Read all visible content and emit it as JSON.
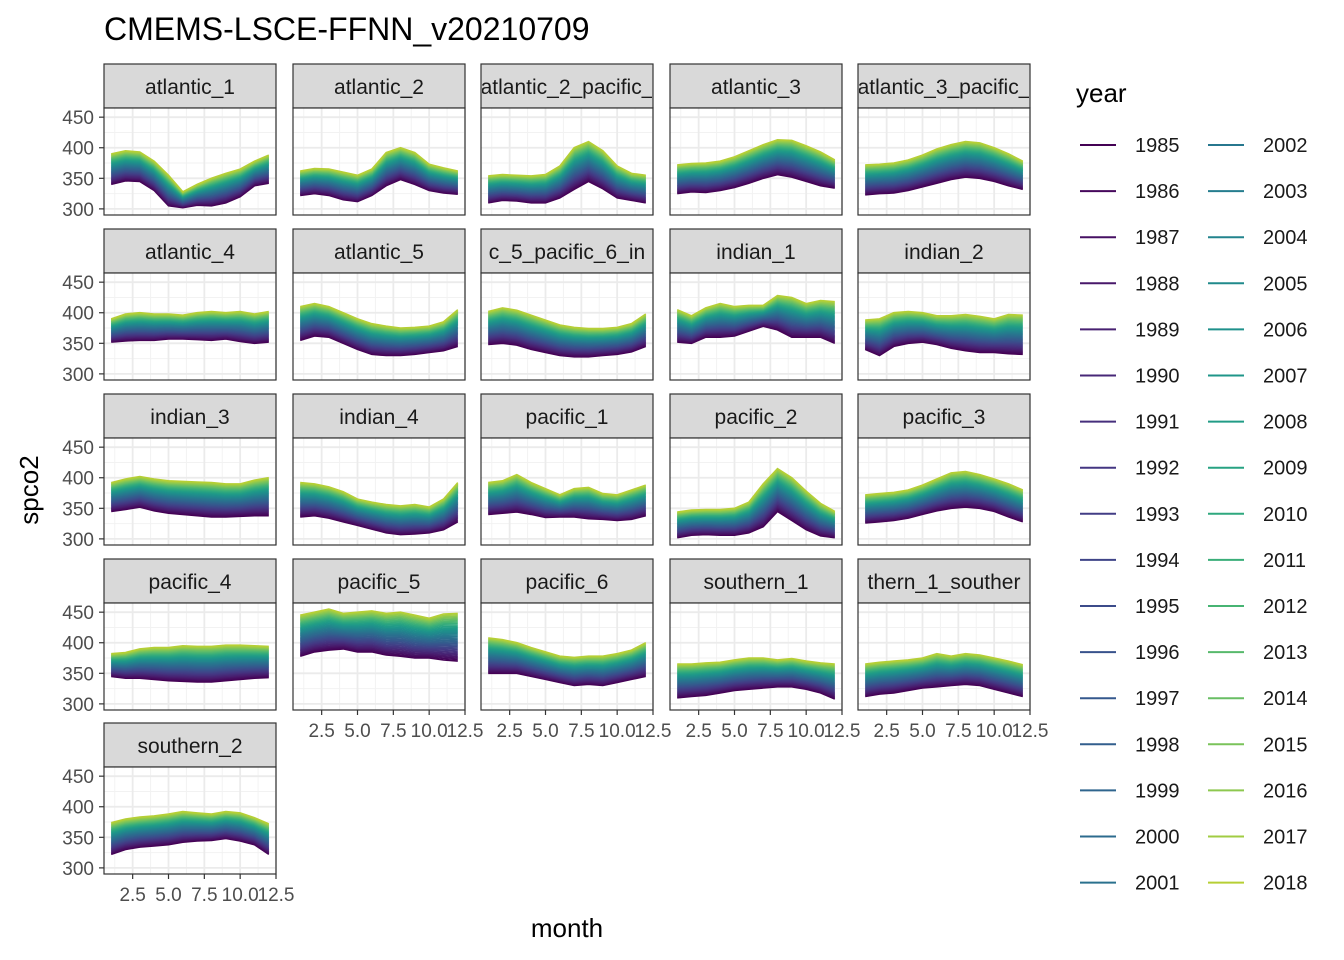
{
  "chart_data": {
    "type": "line",
    "title": "CMEMS-LSCE-FFNN_v20210709",
    "xlabel": "month",
    "ylabel": "spco2",
    "x": [
      1,
      2,
      3,
      4,
      5,
      6,
      7,
      8,
      9,
      10,
      11,
      12
    ],
    "xlim": [
      0.5,
      12.5
    ],
    "ylim": [
      290,
      465
    ],
    "x_ticks": [
      2.5,
      5.0,
      7.5,
      10.0,
      12.5
    ],
    "x_tick_labels": [
      "2.5",
      "5.0",
      "7.5",
      "10.0",
      "12.5"
    ],
    "y_ticks": [
      300,
      350,
      400,
      450
    ],
    "y_tick_labels": [
      "300",
      "350",
      "400",
      "450"
    ],
    "grid": true,
    "legend_title": "year",
    "legend_position": "right",
    "years": [
      "1985",
      "1986",
      "1987",
      "1988",
      "1989",
      "1990",
      "1991",
      "1992",
      "1993",
      "1994",
      "1995",
      "1996",
      "1997",
      "1998",
      "1999",
      "2000",
      "2001",
      "2002",
      "2003",
      "2004",
      "2005",
      "2006",
      "2007",
      "2008",
      "2009",
      "2010",
      "2011",
      "2012",
      "2013",
      "2014",
      "2015",
      "2016",
      "2017",
      "2018"
    ],
    "year_colors": [
      "#440154",
      "#46085c",
      "#471063",
      "#48186a",
      "#482071",
      "#472777",
      "#462f7c",
      "#443682",
      "#423d85",
      "#3f4488",
      "#3c4b8a",
      "#38528c",
      "#35588d",
      "#325f8d",
      "#2f658e",
      "#2c6b8e",
      "#2a718e",
      "#27778e",
      "#257d8e",
      "#22848d",
      "#208a8c",
      "#1f908b",
      "#1f9689",
      "#219c86",
      "#27a282",
      "#2fa87e",
      "#3aae79",
      "#47b473",
      "#57b96c",
      "#68be64",
      "#7ac35a",
      "#8dc84f",
      "#a1cc43",
      "#b6cf35"
    ],
    "panels": [
      {
        "label": "atlantic_1",
        "first": [
          340,
          346,
          345,
          330,
          305,
          302,
          306,
          305,
          310,
          320,
          338,
          342
        ],
        "last": [
          390,
          395,
          393,
          378,
          355,
          328,
          340,
          350,
          358,
          365,
          378,
          388
        ]
      },
      {
        "label": "atlantic_2",
        "first": [
          322,
          325,
          322,
          315,
          312,
          322,
          338,
          348,
          340,
          330,
          326,
          324
        ],
        "last": [
          362,
          366,
          365,
          360,
          355,
          365,
          392,
          400,
          392,
          373,
          367,
          362
        ]
      },
      {
        "label": "atlantic_2_pacific_",
        "first": [
          310,
          314,
          313,
          310,
          310,
          318,
          332,
          345,
          333,
          318,
          314,
          310
        ],
        "last": [
          354,
          356,
          355,
          354,
          356,
          370,
          400,
          410,
          395,
          370,
          358,
          355
        ]
      },
      {
        "label": "atlantic_3",
        "first": [
          325,
          328,
          327,
          330,
          335,
          342,
          350,
          356,
          352,
          345,
          338,
          334
        ],
        "last": [
          372,
          374,
          375,
          378,
          385,
          395,
          405,
          413,
          412,
          403,
          393,
          380
        ]
      },
      {
        "label": "atlantic_3_pacific_",
        "first": [
          323,
          325,
          326,
          330,
          336,
          342,
          348,
          352,
          350,
          345,
          338,
          332
        ],
        "last": [
          372,
          373,
          375,
          380,
          388,
          398,
          405,
          410,
          408,
          400,
          390,
          378
        ]
      },
      {
        "label": "atlantic_4",
        "first": [
          352,
          354,
          355,
          355,
          357,
          357,
          356,
          355,
          357,
          353,
          350,
          352
        ],
        "last": [
          390,
          398,
          400,
          398,
          398,
          396,
          400,
          402,
          400,
          402,
          398,
          402
        ]
      },
      {
        "label": "atlantic_5",
        "first": [
          355,
          362,
          360,
          350,
          340,
          332,
          330,
          330,
          332,
          335,
          338,
          345
        ],
        "last": [
          410,
          415,
          410,
          400,
          390,
          382,
          378,
          375,
          376,
          378,
          385,
          405
        ]
      },
      {
        "label": "c_5_pacific_6_in",
        "first": [
          348,
          350,
          347,
          340,
          335,
          330,
          328,
          328,
          330,
          332,
          336,
          345
        ],
        "last": [
          402,
          408,
          404,
          396,
          388,
          380,
          376,
          374,
          374,
          376,
          382,
          398
        ]
      },
      {
        "label": "indian_1",
        "first": [
          352,
          350,
          360,
          360,
          362,
          370,
          378,
          372,
          360,
          360,
          360,
          350
        ],
        "last": [
          405,
          395,
          408,
          415,
          410,
          412,
          412,
          428,
          425,
          415,
          420,
          418
        ]
      },
      {
        "label": "indian_2",
        "first": [
          340,
          330,
          345,
          350,
          352,
          348,
          342,
          338,
          335,
          335,
          333,
          332
        ],
        "last": [
          388,
          390,
          400,
          402,
          400,
          395,
          395,
          397,
          394,
          390,
          397,
          396
        ]
      },
      {
        "label": "indian_3",
        "first": [
          345,
          348,
          352,
          346,
          342,
          340,
          338,
          336,
          336,
          337,
          338,
          338
        ],
        "last": [
          392,
          398,
          402,
          398,
          395,
          394,
          393,
          392,
          390,
          390,
          396,
          400
        ]
      },
      {
        "label": "indian_4",
        "first": [
          336,
          338,
          334,
          328,
          322,
          316,
          310,
          307,
          308,
          310,
          315,
          328
        ],
        "last": [
          392,
          390,
          385,
          377,
          365,
          360,
          356,
          354,
          356,
          352,
          365,
          392
        ]
      },
      {
        "label": "pacific_1",
        "first": [
          340,
          342,
          344,
          340,
          335,
          336,
          336,
          333,
          332,
          330,
          332,
          338
        ],
        "last": [
          392,
          395,
          405,
          392,
          382,
          372,
          382,
          384,
          374,
          372,
          380,
          388
        ]
      },
      {
        "label": "pacific_2",
        "first": [
          302,
          306,
          307,
          306,
          306,
          310,
          320,
          345,
          330,
          315,
          305,
          302
        ],
        "last": [
          344,
          347,
          348,
          348,
          350,
          360,
          390,
          415,
          400,
          378,
          358,
          345
        ]
      },
      {
        "label": "pacific_3",
        "first": [
          326,
          328,
          330,
          334,
          340,
          346,
          350,
          352,
          350,
          345,
          336,
          328
        ],
        "last": [
          372,
          374,
          376,
          380,
          388,
          398,
          408,
          410,
          405,
          398,
          390,
          380
        ]
      },
      {
        "label": "pacific_4",
        "first": [
          345,
          342,
          342,
          340,
          338,
          337,
          336,
          336,
          338,
          340,
          342,
          343
        ],
        "last": [
          382,
          384,
          390,
          392,
          392,
          395,
          394,
          394,
          396,
          396,
          395,
          394
        ]
      },
      {
        "label": "pacific_5",
        "first": [
          378,
          385,
          388,
          390,
          385,
          385,
          380,
          378,
          375,
          375,
          372,
          370
        ],
        "last": [
          445,
          450,
          455,
          448,
          450,
          452,
          448,
          450,
          445,
          440,
          447,
          448
        ]
      },
      {
        "label": "pacific_6",
        "first": [
          350,
          350,
          350,
          345,
          340,
          335,
          330,
          332,
          330,
          335,
          340,
          345
        ],
        "last": [
          408,
          405,
          400,
          392,
          385,
          378,
          376,
          378,
          378,
          382,
          388,
          400
        ]
      },
      {
        "label": "southern_1",
        "first": [
          310,
          312,
          314,
          318,
          322,
          324,
          326,
          328,
          328,
          324,
          318,
          308
        ],
        "last": [
          365,
          365,
          367,
          368,
          372,
          375,
          375,
          372,
          374,
          370,
          367,
          365
        ]
      },
      {
        "label": "thern_1_souther",
        "first": [
          312,
          316,
          318,
          322,
          326,
          328,
          330,
          332,
          330,
          324,
          318,
          312
        ],
        "last": [
          365,
          368,
          370,
          372,
          375,
          382,
          378,
          382,
          380,
          375,
          370,
          364
        ]
      },
      {
        "label": "southern_2",
        "first": [
          322,
          330,
          334,
          336,
          338,
          342,
          344,
          345,
          348,
          344,
          338,
          322
        ],
        "last": [
          374,
          380,
          383,
          385,
          388,
          392,
          390,
          388,
          392,
          390,
          382,
          372
        ]
      }
    ]
  }
}
